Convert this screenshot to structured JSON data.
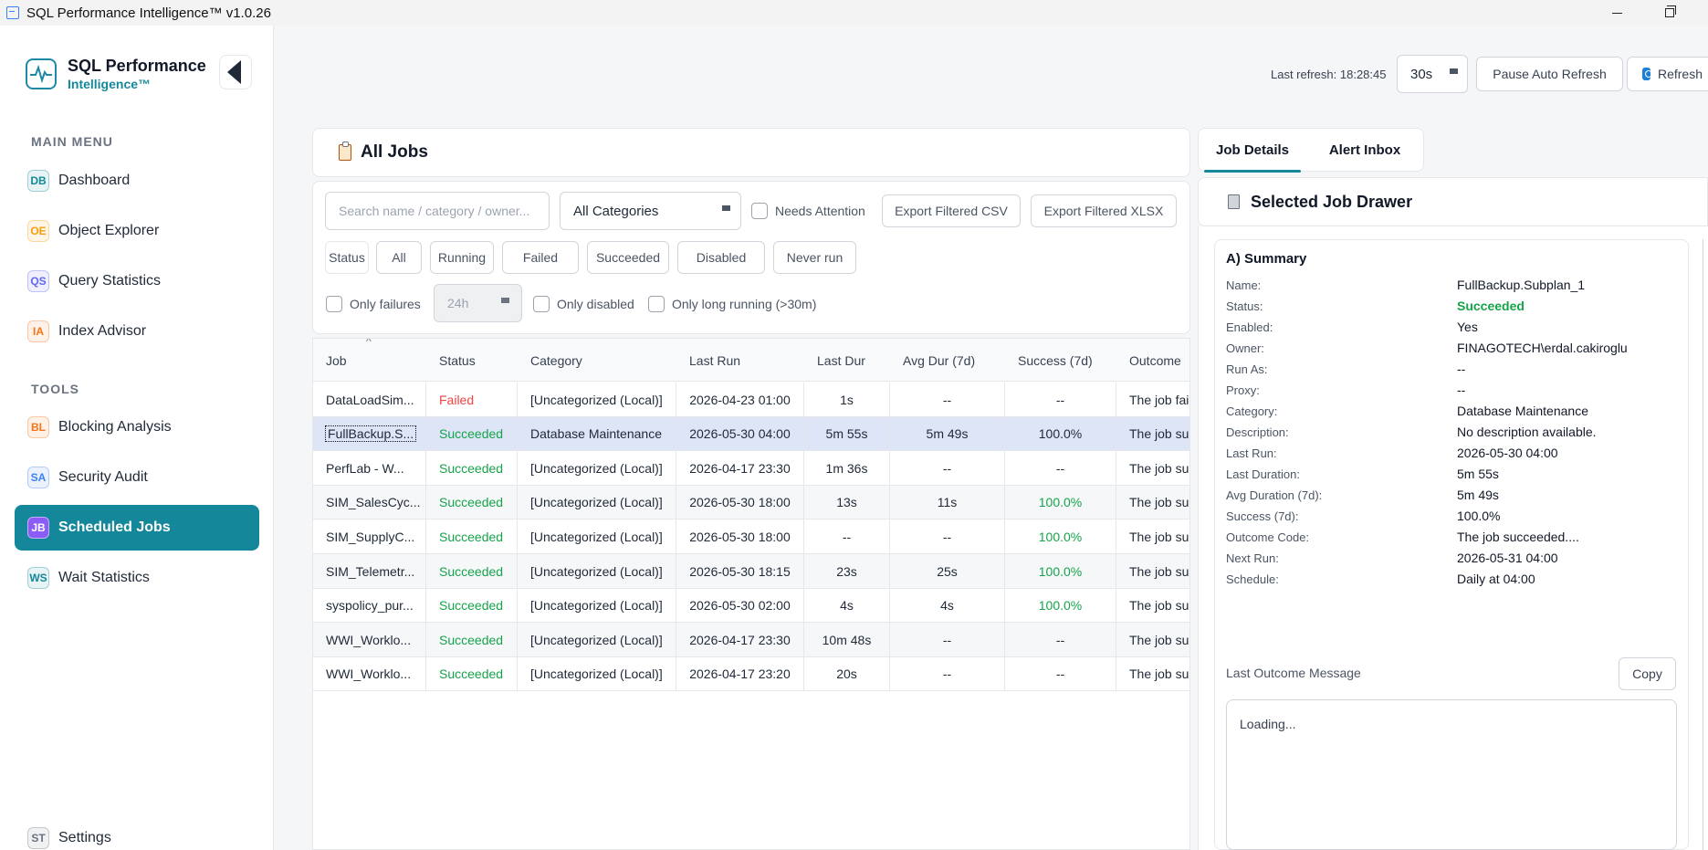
{
  "window": {
    "title": "SQL Performance Intelligence™ v1.0.26"
  },
  "brand": {
    "name": "SQL Performance",
    "sub": "Intelligence™"
  },
  "sidebar": {
    "main_menu_label": "MAIN MENU",
    "tools_label": "TOOLS",
    "main_items": [
      {
        "badge": "DB",
        "label": "Dashboard",
        "color": "#14889a"
      },
      {
        "badge": "OE",
        "label": "Object Explorer",
        "color": "#f59e0b"
      },
      {
        "badge": "QS",
        "label": "Query Statistics",
        "color": "#6366f1"
      },
      {
        "badge": "IA",
        "label": "Index Advisor",
        "color": "#f97316"
      }
    ],
    "tool_items": [
      {
        "badge": "BL",
        "label": "Blocking Analysis",
        "color": "#f97316"
      },
      {
        "badge": "SA",
        "label": "Security Audit",
        "color": "#3b82f6"
      },
      {
        "badge": "JB",
        "label": "Scheduled Jobs",
        "color": "#8b5cf6",
        "active": true
      },
      {
        "badge": "WS",
        "label": "Wait Statistics",
        "color": "#14889a"
      }
    ],
    "settings": {
      "badge": "ST",
      "label": "Settings",
      "color": "#6b7280"
    }
  },
  "topbar": {
    "last_refresh": "Last refresh: 18:28:45",
    "interval": "30s",
    "pause_label": "Pause Auto Refresh",
    "refresh_label": "Refresh"
  },
  "jobs": {
    "title": "All Jobs",
    "search_placeholder": "Search name / category / owner...",
    "category_select": "All Categories",
    "needs_attention": "Needs Attention",
    "export_csv": "Export Filtered CSV",
    "export_xlsx": "Export Filtered XLSX",
    "status_label": "Status",
    "status_filters": [
      "All",
      "Running",
      "Failed",
      "Succeeded",
      "Disabled",
      "Never run"
    ],
    "only_failures": "Only failures",
    "window_select": "24h",
    "only_disabled": "Only disabled",
    "only_long_running": "Only long running (>30m)",
    "columns": [
      "Job",
      "Status",
      "Category",
      "Last Run",
      "Last Dur",
      "Avg Dur (7d)",
      "Success (7d)",
      "Outcome"
    ],
    "rows": [
      {
        "job": "DataLoadSim...",
        "status": "Failed",
        "category": "[Uncategorized (Local)]",
        "last_run": "2026-04-23 01:00",
        "last_dur": "1s",
        "avg_dur": "--",
        "success": "--",
        "outcome": "The job failed."
      },
      {
        "job": "FullBackup.S...",
        "status": "Succeeded",
        "category": "Database Maintenance",
        "last_run": "2026-05-30 04:00",
        "last_dur": "5m 55s",
        "avg_dur": "5m 49s",
        "success": "100.0%",
        "outcome": "The job succeeded.",
        "selected": true
      },
      {
        "job": "PerfLab - W...",
        "status": "Succeeded",
        "category": "[Uncategorized (Local)]",
        "last_run": "2026-04-17 23:30",
        "last_dur": "1m 36s",
        "avg_dur": "--",
        "success": "--",
        "outcome": "The job succeeded."
      },
      {
        "job": "SIM_SalesCyc...",
        "status": "Succeeded",
        "category": "[Uncategorized (Local)]",
        "last_run": "2026-05-30 18:00",
        "last_dur": "13s",
        "avg_dur": "11s",
        "success": "100.0%",
        "outcome": "The job succeeded."
      },
      {
        "job": "SIM_SupplyC...",
        "status": "Succeeded",
        "category": "[Uncategorized (Local)]",
        "last_run": "2026-05-30 18:00",
        "last_dur": "--",
        "avg_dur": "--",
        "success": "100.0%",
        "outcome": "The job succeeded."
      },
      {
        "job": "SIM_Telemetr...",
        "status": "Succeeded",
        "category": "[Uncategorized (Local)]",
        "last_run": "2026-05-30 18:15",
        "last_dur": "23s",
        "avg_dur": "25s",
        "success": "100.0%",
        "outcome": "The job succeeded."
      },
      {
        "job": "syspolicy_pur...",
        "status": "Succeeded",
        "category": "[Uncategorized (Local)]",
        "last_run": "2026-05-30 02:00",
        "last_dur": "4s",
        "avg_dur": "4s",
        "success": "100.0%",
        "outcome": "The job succeeded."
      },
      {
        "job": "WWI_Worklo...",
        "status": "Succeeded",
        "category": "[Uncategorized (Local)]",
        "last_run": "2026-04-17 23:30",
        "last_dur": "10m 48s",
        "avg_dur": "--",
        "success": "--",
        "outcome": "The job succeeded."
      },
      {
        "job": "WWI_Worklo...",
        "status": "Succeeded",
        "category": "[Uncategorized (Local)]",
        "last_run": "2026-04-17 23:20",
        "last_dur": "20s",
        "avg_dur": "--",
        "success": "--",
        "outcome": "The job succeeded."
      }
    ]
  },
  "drawer": {
    "tabs": [
      "Job Details",
      "Alert Inbox"
    ],
    "title": "Selected Job Drawer",
    "summary_title": "A) Summary",
    "fields": [
      {
        "label": "Name:",
        "value": "FullBackup.Subplan_1"
      },
      {
        "label": "Status:",
        "value": "Succeeded",
        "ok": true
      },
      {
        "label": "Enabled:",
        "value": "Yes"
      },
      {
        "label": "Owner:",
        "value": "FINAGOTECH\\erdal.cakiroglu"
      },
      {
        "label": "Run As:",
        "value": "--"
      },
      {
        "label": "Proxy:",
        "value": "--"
      },
      {
        "label": "Category:",
        "value": "Database Maintenance"
      },
      {
        "label": "Description:",
        "value": "No description available."
      },
      {
        "label": "Last Run:",
        "value": "2026-05-30 04:00"
      },
      {
        "label": "Last Duration:",
        "value": "5m 55s"
      },
      {
        "label": "Avg Duration (7d):",
        "value": "5m 49s"
      },
      {
        "label": "Success (7d):",
        "value": "100.0%"
      },
      {
        "label": "Outcome Code:",
        "value": "The job succeeded...."
      },
      {
        "label": "Next Run:",
        "value": "2026-05-31 04:00"
      },
      {
        "label": "Schedule:",
        "value": "Daily at 04:00"
      }
    ],
    "outcome_label": "Last Outcome Message",
    "copy_label": "Copy",
    "message": "Loading..."
  }
}
